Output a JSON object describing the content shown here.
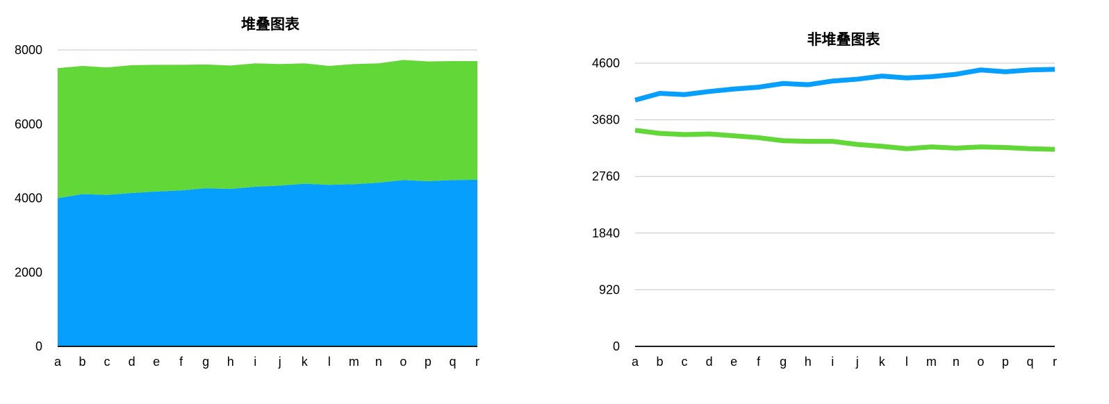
{
  "chart_data": [
    {
      "type": "area",
      "stacked": true,
      "title": "堆叠图表",
      "categories": [
        "a",
        "b",
        "c",
        "d",
        "e",
        "f",
        "g",
        "h",
        "i",
        "j",
        "k",
        "l",
        "m",
        "n",
        "o",
        "p",
        "q",
        "r"
      ],
      "yticks": [
        "0",
        "2000",
        "4000",
        "6000",
        "8000"
      ],
      "ylim": [
        0,
        8000
      ],
      "grid": true,
      "series": [
        {
          "color": "#079ffe",
          "values": [
            4000,
            4110,
            4090,
            4140,
            4180,
            4210,
            4270,
            4250,
            4310,
            4340,
            4390,
            4360,
            4380,
            4420,
            4490,
            4460,
            4490,
            4500
          ]
        },
        {
          "color": "#62d838",
          "values": [
            3510,
            3460,
            3440,
            3450,
            3420,
            3390,
            3340,
            3330,
            3330,
            3280,
            3250,
            3210,
            3240,
            3220,
            3240,
            3230,
            3210,
            3200
          ]
        }
      ]
    },
    {
      "type": "line",
      "title": "非堆叠图表",
      "categories": [
        "a",
        "b",
        "c",
        "d",
        "e",
        "f",
        "g",
        "h",
        "i",
        "j",
        "k",
        "l",
        "m",
        "n",
        "o",
        "p",
        "q",
        "r"
      ],
      "yticks": [
        "0",
        "920",
        "1840",
        "2760",
        "3680",
        "4600"
      ],
      "ylim": [
        0,
        4600
      ],
      "grid": true,
      "series": [
        {
          "color": "#079ffe",
          "values": [
            4000,
            4110,
            4090,
            4140,
            4180,
            4210,
            4270,
            4250,
            4310,
            4340,
            4390,
            4360,
            4380,
            4420,
            4490,
            4460,
            4490,
            4500
          ]
        },
        {
          "color": "#62d838",
          "values": [
            3510,
            3460,
            3440,
            3450,
            3420,
            3390,
            3340,
            3330,
            3330,
            3280,
            3250,
            3210,
            3240,
            3220,
            3240,
            3230,
            3210,
            3200
          ]
        }
      ]
    }
  ]
}
